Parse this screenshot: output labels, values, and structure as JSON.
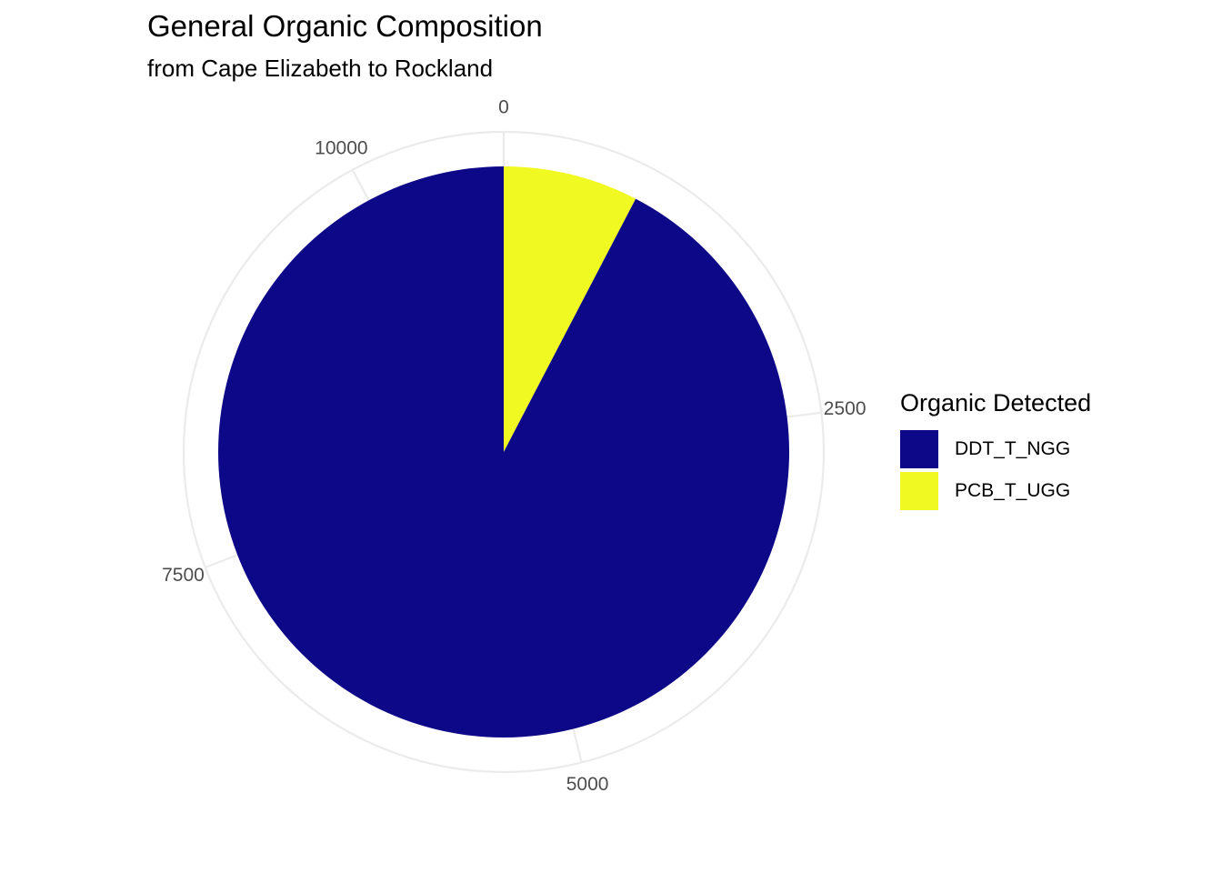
{
  "chart_data": {
    "type": "pie",
    "title": "General Organic Composition",
    "subtitle": "from Cape Elizabeth to Rockland",
    "legend_title": "Organic Detected",
    "legend_position": "right",
    "grid": true,
    "axis_ticks": [
      "0",
      "2500",
      "5000",
      "7500",
      "10000"
    ],
    "tick_values": [
      0,
      2500,
      5000,
      7500,
      10000
    ],
    "axis_max": 10850,
    "slices": [
      {
        "label": "PCB_T_UGG",
        "value": 830,
        "color": "#F0F921"
      },
      {
        "label": "DDT_T_NGG",
        "value": 10020,
        "color": "#0D0887"
      }
    ],
    "legend": [
      {
        "label": "DDT_T_NGG",
        "color": "#0D0887"
      },
      {
        "label": "PCB_T_UGG",
        "color": "#F0F921"
      }
    ]
  }
}
